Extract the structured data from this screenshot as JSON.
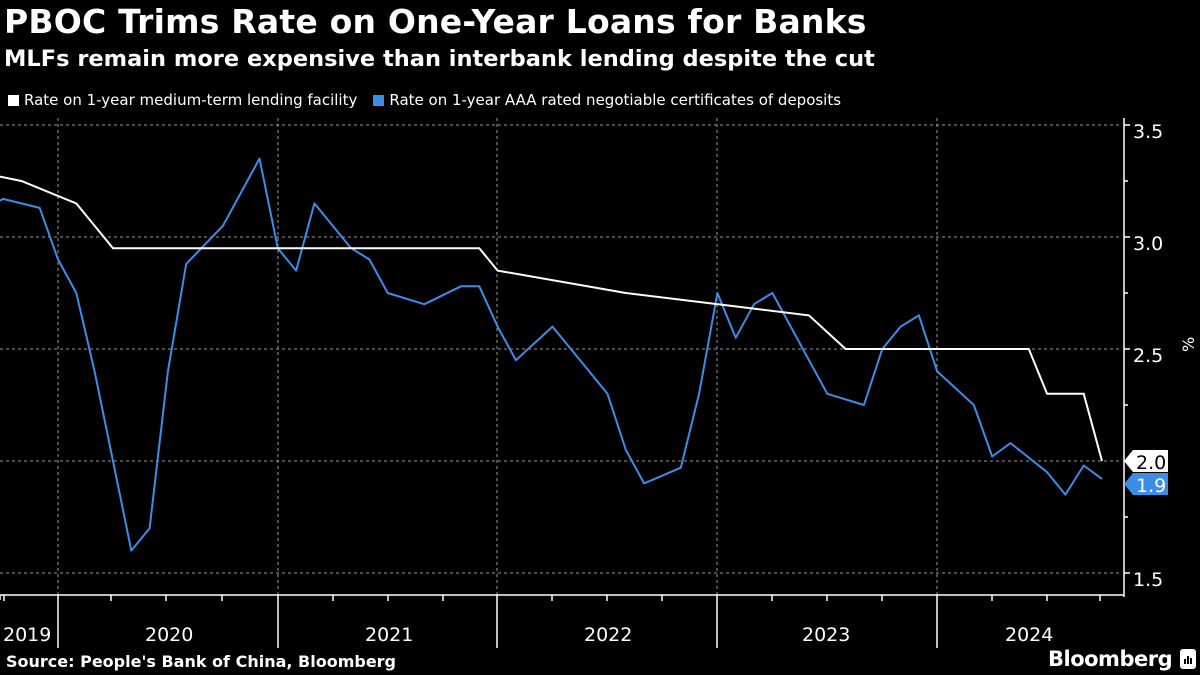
{
  "header": {
    "title": "PBOC Trims Rate on One-Year Loans for Banks",
    "subtitle": "MLFs remain more expensive than interbank lending despite the cut"
  },
  "legend": [
    {
      "label": "Rate on 1-year medium-term lending facility",
      "color": "#ffffff"
    },
    {
      "label": "Rate on 1-year AAA rated negotiable certificates of deposits",
      "color": "#3a8ee6"
    }
  ],
  "footer": {
    "source": "Source: People's Bank of China, Bloomberg",
    "brand": "Bloomberg"
  },
  "axis": {
    "y_unit": "%",
    "y_ticks": [
      "3.5",
      "3.0",
      "2.5",
      "2.0",
      "1.5"
    ],
    "x_ticks": [
      "2019",
      "2020",
      "2021",
      "2022",
      "2023",
      "2024"
    ]
  },
  "end_labels": {
    "mlf": "2.0",
    "ncd": "1.9"
  },
  "chart_data": {
    "type": "line",
    "title": "PBOC Trims Rate on One-Year Loans for Banks",
    "subtitle": "MLFs remain more expensive than interbank lending despite the cut",
    "xlabel": "",
    "ylabel": "%",
    "ylim": [
      1.5,
      3.5
    ],
    "y_ticks": [
      1.5,
      2.0,
      2.5,
      3.0,
      3.5
    ],
    "x_ticks": [
      "2019",
      "2020",
      "2021",
      "2022",
      "2023",
      "2024"
    ],
    "grid": true,
    "legend_position": "top-left",
    "series": [
      {
        "name": "Rate on 1-year medium-term lending facility",
        "color": "#ffffff",
        "points": [
          {
            "date": "2019-08",
            "value": 3.3
          },
          {
            "date": "2019-11",
            "value": 3.25
          },
          {
            "date": "2020-02",
            "value": 3.15
          },
          {
            "date": "2020-04",
            "value": 2.95
          },
          {
            "date": "2021-12",
            "value": 2.95
          },
          {
            "date": "2022-01",
            "value": 2.85
          },
          {
            "date": "2022-08",
            "value": 2.75
          },
          {
            "date": "2023-06",
            "value": 2.65
          },
          {
            "date": "2023-08",
            "value": 2.5
          },
          {
            "date": "2024-06",
            "value": 2.5
          },
          {
            "date": "2024-07",
            "value": 2.3
          },
          {
            "date": "2024-09",
            "value": 2.3
          },
          {
            "date": "2024-10",
            "value": 2.0
          }
        ],
        "last_value": 2.0
      },
      {
        "name": "Rate on 1-year AAA rated negotiable certificates of deposits",
        "color": "#3a8ee6",
        "points": [
          {
            "date": "2019-07",
            "value": 3.03
          },
          {
            "date": "2019-10",
            "value": 3.17
          },
          {
            "date": "2019-12",
            "value": 3.13
          },
          {
            "date": "2020-01",
            "value": 2.9
          },
          {
            "date": "2020-02",
            "value": 2.75
          },
          {
            "date": "2020-03",
            "value": 2.4
          },
          {
            "date": "2020-04",
            "value": 2.0
          },
          {
            "date": "2020-05",
            "value": 1.6
          },
          {
            "date": "2020-06",
            "value": 1.7
          },
          {
            "date": "2020-07",
            "value": 2.4
          },
          {
            "date": "2020-08",
            "value": 2.88
          },
          {
            "date": "2020-10",
            "value": 3.05
          },
          {
            "date": "2020-12",
            "value": 3.35
          },
          {
            "date": "2021-01",
            "value": 2.95
          },
          {
            "date": "2021-02",
            "value": 2.85
          },
          {
            "date": "2021-03",
            "value": 3.15
          },
          {
            "date": "2021-05",
            "value": 2.95
          },
          {
            "date": "2021-06",
            "value": 2.9
          },
          {
            "date": "2021-07",
            "value": 2.75
          },
          {
            "date": "2021-09",
            "value": 2.7
          },
          {
            "date": "2021-11",
            "value": 2.78
          },
          {
            "date": "2021-12",
            "value": 2.78
          },
          {
            "date": "2022-01",
            "value": 2.6
          },
          {
            "date": "2022-02",
            "value": 2.45
          },
          {
            "date": "2022-04",
            "value": 2.6
          },
          {
            "date": "2022-06",
            "value": 2.4
          },
          {
            "date": "2022-07",
            "value": 2.3
          },
          {
            "date": "2022-08",
            "value": 2.05
          },
          {
            "date": "2022-09",
            "value": 1.9
          },
          {
            "date": "2022-11",
            "value": 1.97
          },
          {
            "date": "2022-12",
            "value": 2.3
          },
          {
            "date": "2023-01",
            "value": 2.75
          },
          {
            "date": "2023-02",
            "value": 2.55
          },
          {
            "date": "2023-03",
            "value": 2.7
          },
          {
            "date": "2023-04",
            "value": 2.75
          },
          {
            "date": "2023-06",
            "value": 2.45
          },
          {
            "date": "2023-07",
            "value": 2.3
          },
          {
            "date": "2023-09",
            "value": 2.25
          },
          {
            "date": "2023-10",
            "value": 2.5
          },
          {
            "date": "2023-11",
            "value": 2.6
          },
          {
            "date": "2023-12",
            "value": 2.65
          },
          {
            "date": "2024-01",
            "value": 2.4
          },
          {
            "date": "2024-03",
            "value": 2.25
          },
          {
            "date": "2024-04",
            "value": 2.02
          },
          {
            "date": "2024-05",
            "value": 2.08
          },
          {
            "date": "2024-07",
            "value": 1.95
          },
          {
            "date": "2024-08",
            "value": 1.85
          },
          {
            "date": "2024-09",
            "value": 1.98
          },
          {
            "date": "2024-10",
            "value": 1.92
          }
        ],
        "last_value": 1.9
      }
    ]
  }
}
